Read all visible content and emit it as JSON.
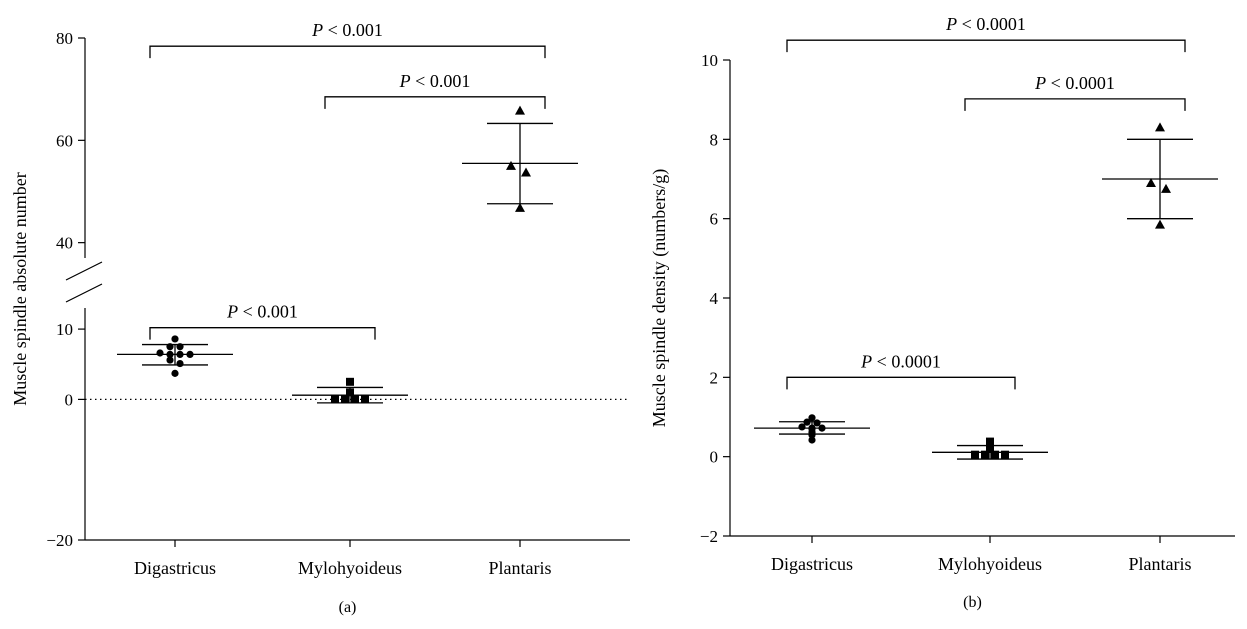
{
  "chart_data": [
    {
      "type": "scatter",
      "panel_label": "(a)",
      "title": "",
      "xlabel": "",
      "ylabel": "Muscle spindle absolute number",
      "categories": [
        "Digastricus",
        "Mylohyoideus",
        "Plantaris"
      ],
      "y_ticks": [
        -20,
        0,
        10,
        40,
        60,
        80
      ],
      "y_tick_labels": [
        "−20",
        "0",
        "10",
        "40",
        "60",
        "80"
      ],
      "axis_break": [
        13,
        37
      ],
      "ylim": [
        -20,
        80
      ],
      "reference_line": 0,
      "grid": false,
      "series": [
        {
          "category": "Digastricus",
          "marker": "circle",
          "points": [
            8.6,
            7.5,
            7.5,
            6.6,
            6.4,
            6.4,
            6.4,
            5.6,
            5.1,
            3.7
          ],
          "mean": 6.4,
          "err_low": 4.9,
          "err_high": 7.8
        },
        {
          "category": "Mylohyoideus",
          "marker": "square",
          "points": [
            2.5,
            1.0,
            0,
            0,
            0,
            0
          ],
          "mean": 0.6,
          "err_low": -0.5,
          "err_high": 1.7
        },
        {
          "category": "Plantaris",
          "marker": "triangle",
          "points": [
            65.8,
            55.0,
            53.7,
            46.8
          ],
          "mean": 55.5,
          "err_low": 47.6,
          "err_high": 63.3
        }
      ],
      "comparisons": [
        {
          "from": "Digastricus",
          "to": "Plantaris",
          "label": "P < 0.001",
          "y": 78.4
        },
        {
          "from": "Mylohyoideus",
          "to": "Plantaris",
          "label": "P < 0.001",
          "y": 68.5
        },
        {
          "from": "Digastricus",
          "to": "Mylohyoideus",
          "label": "P < 0.001",
          "y": 10.2
        }
      ]
    },
    {
      "type": "scatter",
      "panel_label": "(b)",
      "title": "",
      "xlabel": "",
      "ylabel": "Muscle spindle density (numbers/g)",
      "categories": [
        "Digastricus",
        "Mylohyoideus",
        "Plantaris"
      ],
      "y_ticks": [
        -2,
        0,
        2,
        4,
        6,
        8,
        10
      ],
      "y_tick_labels": [
        "−2",
        "0",
        "2",
        "4",
        "6",
        "8",
        "10"
      ],
      "ylim": [
        -2,
        10
      ],
      "grid": false,
      "series": [
        {
          "category": "Digastricus",
          "marker": "circle",
          "points": [
            0.98,
            0.87,
            0.85,
            0.75,
            0.72,
            0.72,
            0.7,
            0.62,
            0.55,
            0.42
          ],
          "mean": 0.72,
          "err_low": 0.57,
          "err_high": 0.88
        },
        {
          "category": "Mylohyoideus",
          "marker": "square",
          "points": [
            0.38,
            0.2,
            0.05,
            0.05,
            0.05,
            0.05
          ],
          "mean": 0.11,
          "err_low": -0.06,
          "err_high": 0.28
        },
        {
          "category": "Plantaris",
          "marker": "triangle",
          "points": [
            8.3,
            6.9,
            6.75,
            5.85
          ],
          "mean": 7.0,
          "err_low": 6.0,
          "err_high": 8.0
        }
      ],
      "comparisons": [
        {
          "from": "Digastricus",
          "to": "Plantaris",
          "label": "P < 0.0001",
          "y": 10.5
        },
        {
          "from": "Mylohyoideus",
          "to": "Plantaris",
          "label": "P < 0.0001",
          "y": 9.02
        },
        {
          "from": "Digastricus",
          "to": "Mylohyoideus",
          "label": "P < 0.0001",
          "y": 2.0
        }
      ]
    }
  ]
}
